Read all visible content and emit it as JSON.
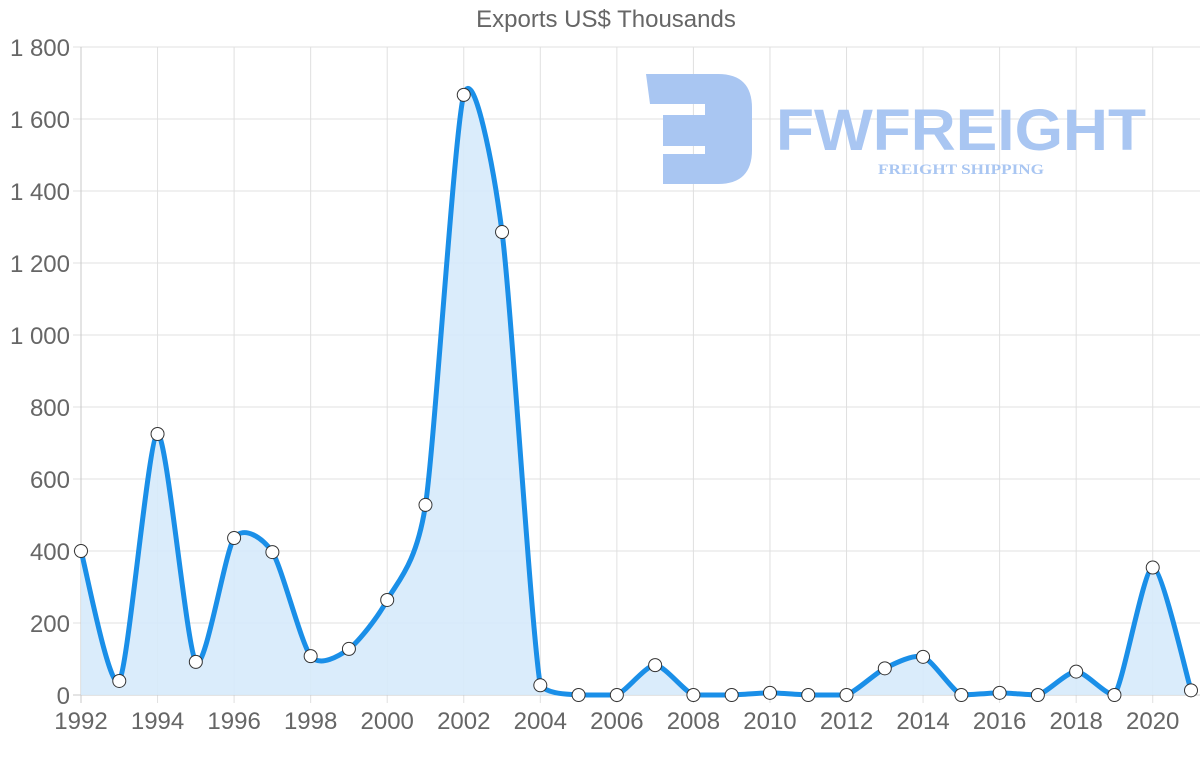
{
  "chart_data": {
    "type": "line",
    "title": "Exports US$ Thousands",
    "xlabel": "",
    "ylabel": "",
    "x": [
      1992,
      1993,
      1994,
      1995,
      1996,
      1997,
      1998,
      1999,
      2000,
      2001,
      2002,
      2003,
      2004,
      2005,
      2006,
      2007,
      2008,
      2009,
      2010,
      2011,
      2012,
      2013,
      2014,
      2015,
      2016,
      2017,
      2018,
      2019,
      2020,
      2021
    ],
    "series": [
      {
        "name": "Exports US$ Thousands",
        "values": [
          400,
          39,
          725,
          92,
          436,
          397,
          108,
          128,
          264,
          528,
          1667,
          1286,
          27,
          0,
          0,
          83,
          0,
          0,
          6,
          0,
          0,
          74,
          106,
          0,
          6,
          0,
          65,
          0,
          354,
          13
        ]
      }
    ],
    "ylim": [
      0,
      1800
    ],
    "yticks": [
      "0",
      "200",
      "400",
      "600",
      "800",
      "1 000",
      "1 200",
      "1 400",
      "1 600",
      "1 800"
    ],
    "xticks": [
      "1992",
      "1994",
      "1996",
      "1998",
      "2000",
      "2002",
      "2004",
      "2006",
      "2008",
      "2010",
      "2012",
      "2014",
      "2016",
      "2018",
      "2020"
    ],
    "grid": true,
    "legend": "none",
    "fill": true,
    "colors": {
      "line": "#1a8fe8",
      "fill": "#d6eafb",
      "point_fill": "#ffffff",
      "point_stroke": "#333333",
      "grid": "#e0e0e0",
      "text": "#666666"
    }
  },
  "watermark": {
    "brand": "FWFREIGHT",
    "tagline": "FREIGHT SHIPPING",
    "color": "#a9c6f2"
  }
}
